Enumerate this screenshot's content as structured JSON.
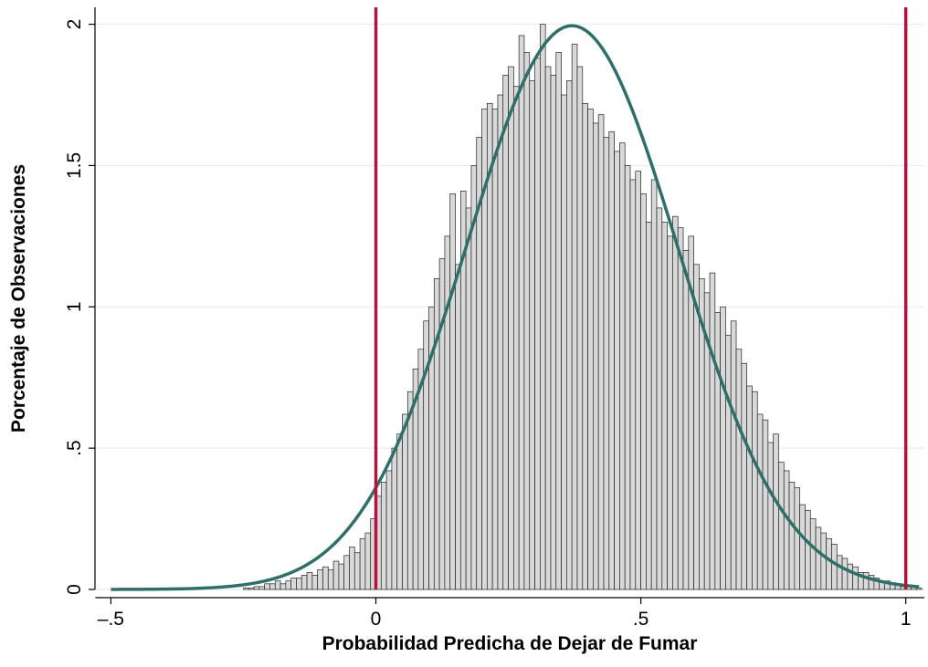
{
  "chart_data": {
    "type": "histogram",
    "xlabel": "Probabilidad Predicha de Dejar de Fumar",
    "ylabel": "Porcentaje de Observaciones",
    "bins": [
      -0.25,
      -0.24,
      -0.23,
      -0.22,
      -0.21,
      -0.2,
      -0.19,
      -0.18,
      -0.17,
      -0.16,
      -0.15,
      -0.14,
      -0.13,
      -0.12,
      -0.11,
      -0.1,
      -0.09,
      -0.08,
      -0.07,
      -0.06,
      -0.05,
      -0.04,
      -0.03,
      -0.02,
      -0.01,
      0,
      0.01,
      0.02,
      0.03,
      0.04,
      0.05,
      0.06,
      0.07,
      0.08,
      0.09,
      0.1,
      0.11,
      0.12,
      0.13,
      0.14,
      0.15,
      0.16,
      0.17,
      0.18,
      0.19,
      0.2,
      0.21,
      0.22,
      0.23,
      0.24,
      0.25,
      0.26,
      0.27,
      0.28,
      0.29,
      0.3,
      0.31,
      0.32,
      0.33,
      0.34,
      0.35,
      0.36,
      0.37,
      0.38,
      0.39,
      0.4,
      0.41,
      0.42,
      0.43,
      0.44,
      0.45,
      0.46,
      0.47,
      0.48,
      0.49,
      0.5,
      0.51,
      0.52,
      0.53,
      0.54,
      0.55,
      0.56,
      0.57,
      0.58,
      0.59,
      0.6,
      0.61,
      0.62,
      0.63,
      0.64,
      0.65,
      0.66,
      0.67,
      0.68,
      0.69,
      0.7,
      0.71,
      0.72,
      0.73,
      0.74,
      0.75,
      0.76,
      0.77,
      0.78,
      0.79,
      0.8,
      0.81,
      0.82,
      0.83,
      0.84,
      0.85,
      0.86,
      0.87,
      0.88,
      0.89,
      0.9,
      0.91,
      0.92,
      0.93,
      0.94,
      0.95,
      0.96,
      0.97,
      0.98,
      0.99,
      1,
      1.01,
      1.02,
      1.03
    ],
    "values": [
      0.005,
      0.005,
      0.01,
      0.01,
      0.02,
      0.02,
      0.03,
      0.02,
      0.03,
      0.04,
      0.04,
      0.05,
      0.06,
      0.05,
      0.07,
      0.08,
      0.07,
      0.1,
      0.09,
      0.12,
      0.15,
      0.13,
      0.18,
      0.2,
      0.25,
      0.33,
      0.38,
      0.42,
      0.5,
      0.55,
      0.62,
      0.7,
      0.78,
      0.85,
      0.95,
      1.0,
      1.1,
      1.17,
      1.25,
      1.4,
      1.15,
      1.41,
      1.35,
      1.5,
      1.6,
      1.7,
      1.72,
      1.7,
      1.75,
      1.82,
      1.85,
      1.78,
      1.96,
      1.9,
      1.8,
      1.88,
      2.0,
      1.85,
      1.82,
      1.9,
      1.75,
      1.8,
      1.93,
      1.85,
      1.72,
      1.7,
      1.65,
      1.68,
      1.6,
      1.62,
      1.55,
      1.58,
      1.5,
      1.45,
      1.48,
      1.4,
      1.3,
      1.45,
      1.35,
      1.3,
      1.25,
      1.32,
      1.28,
      1.2,
      1.25,
      1.15,
      1.1,
      1.05,
      1.12,
      0.98,
      1.0,
      0.9,
      0.95,
      0.85,
      0.8,
      0.72,
      0.7,
      0.62,
      0.6,
      0.52,
      0.55,
      0.45,
      0.42,
      0.38,
      0.36,
      0.3,
      0.28,
      0.25,
      0.22,
      0.2,
      0.18,
      0.16,
      0.12,
      0.11,
      0.09,
      0.08,
      0.06,
      0.06,
      0.05,
      0.04,
      0.03,
      0.03,
      0.02,
      0.02,
      0.01,
      0.01,
      0.01,
      0.005
    ],
    "color": "#d9d9d9",
    "normal": {
      "mean": 0.37,
      "sd": 0.2,
      "color": "#2f6f6a"
    },
    "vlines": [
      0,
      1
    ],
    "vline_color": "#b5123c",
    "xlim": [
      -0.53,
      1.035
    ],
    "ylim": [
      0,
      2.06
    ],
    "xticks": [
      {
        "value": -0.5,
        "label": "–.5"
      },
      0,
      {
        "value": 0.5,
        "label": ".5"
      },
      1
    ],
    "yticks": [
      0,
      {
        "value": 0.5,
        "label": ".5"
      },
      1,
      1.5,
      2
    ],
    "grid": true
  }
}
